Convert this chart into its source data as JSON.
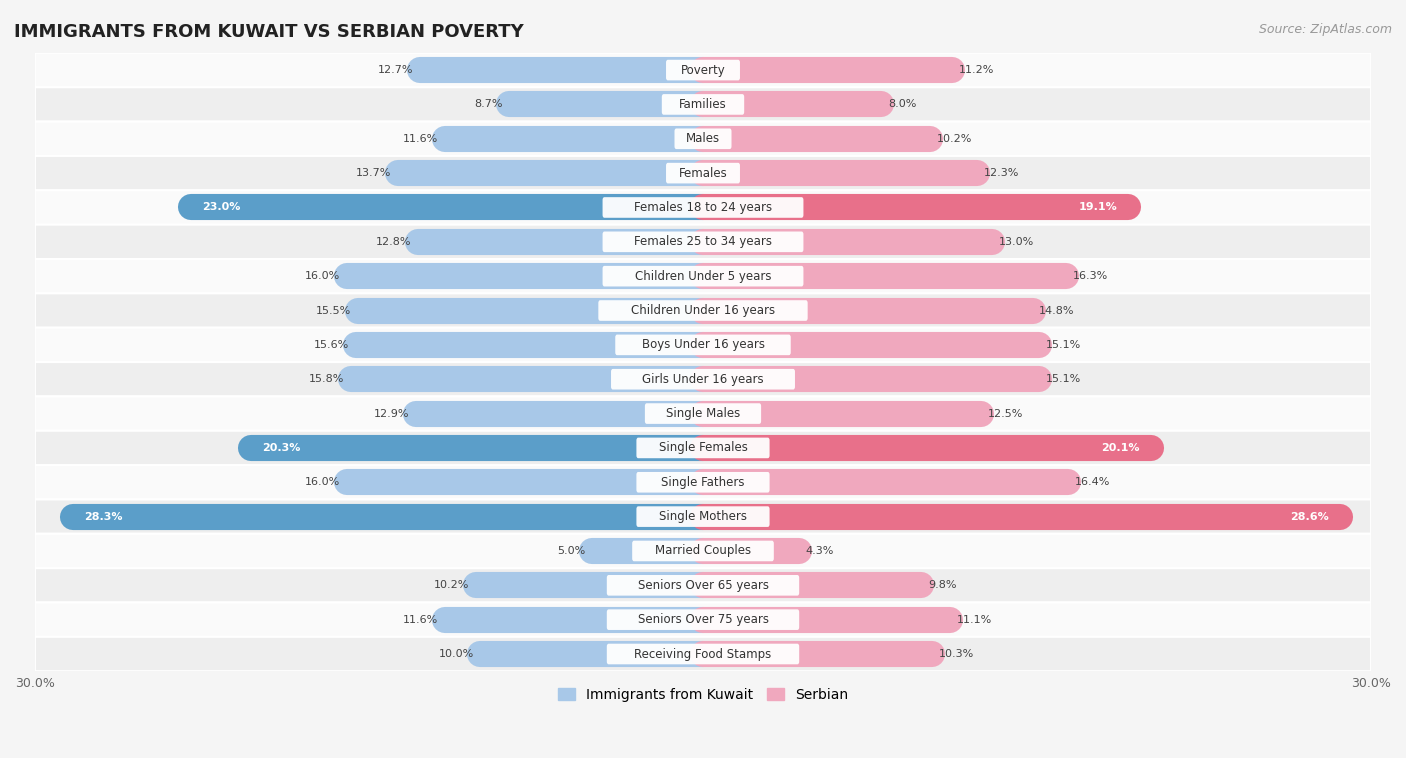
{
  "title": "IMMIGRANTS FROM KUWAIT VS SERBIAN POVERTY",
  "source": "Source: ZipAtlas.com",
  "categories": [
    "Poverty",
    "Families",
    "Males",
    "Females",
    "Females 18 to 24 years",
    "Females 25 to 34 years",
    "Children Under 5 years",
    "Children Under 16 years",
    "Boys Under 16 years",
    "Girls Under 16 years",
    "Single Males",
    "Single Females",
    "Single Fathers",
    "Single Mothers",
    "Married Couples",
    "Seniors Over 65 years",
    "Seniors Over 75 years",
    "Receiving Food Stamps"
  ],
  "kuwait_values": [
    12.7,
    8.7,
    11.6,
    13.7,
    23.0,
    12.8,
    16.0,
    15.5,
    15.6,
    15.8,
    12.9,
    20.3,
    16.0,
    28.3,
    5.0,
    10.2,
    11.6,
    10.0
  ],
  "serbian_values": [
    11.2,
    8.0,
    10.2,
    12.3,
    19.1,
    13.0,
    16.3,
    14.8,
    15.1,
    15.1,
    12.5,
    20.1,
    16.4,
    28.6,
    4.3,
    9.8,
    11.1,
    10.3
  ],
  "kuwait_color": "#a8c8e8",
  "serbian_color": "#f0a8be",
  "kuwait_highlight_color": "#5b9ec9",
  "serbian_highlight_color": "#e8708a",
  "highlight_rows": [
    4,
    11,
    13
  ],
  "xlim": 30.0,
  "bar_height": 0.62,
  "background_color": "#f5f5f5",
  "row_bg_light": "#fafafa",
  "row_bg_dark": "#eeeeee",
  "legend_kuwait": "Immigrants from Kuwait",
  "legend_serbian": "Serbian",
  "label_pill_color": "#ffffff"
}
